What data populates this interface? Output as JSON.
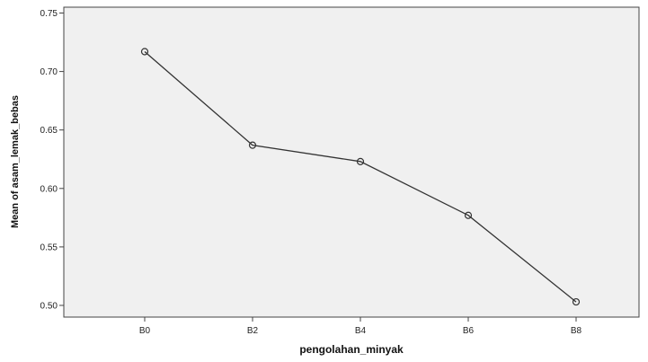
{
  "chart_data": {
    "type": "line",
    "title": "",
    "xlabel": "pengolahan_minyak",
    "ylabel": "Mean of asam_lemak_bebas",
    "categories": [
      "B0",
      "B2",
      "B4",
      "B6",
      "B8"
    ],
    "series": [
      {
        "values": [
          0.717,
          0.637,
          0.623,
          0.577,
          0.503
        ]
      }
    ],
    "ylim": [
      0.49,
      0.755
    ],
    "yticks": [
      "0.50",
      "0.55",
      "0.60",
      "0.65",
      "0.70",
      "0.75"
    ],
    "grid": false,
    "marker": "open-circle",
    "colors": {
      "plot_background": "#f0f0f0",
      "line": "#333333",
      "axis": "#444444"
    }
  }
}
